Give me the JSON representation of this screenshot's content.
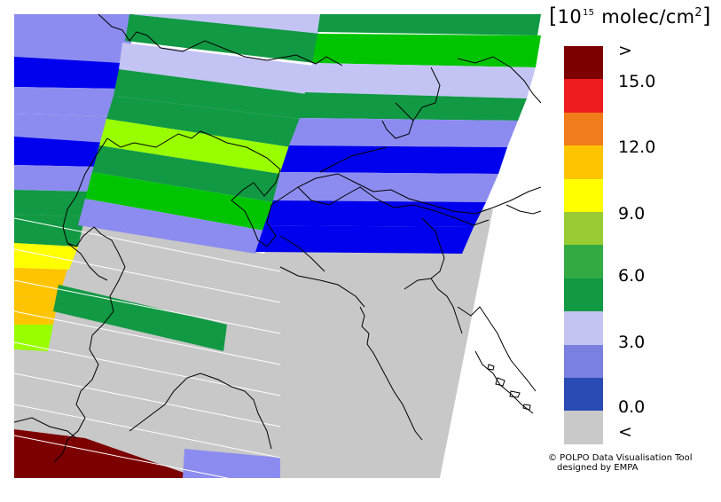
{
  "legend": {
    "unit_base": "10",
    "unit_exp": "15",
    "unit_rest": " molec/cm",
    "unit_sq": "2",
    "colors": [
      "#7d0000",
      "#ee1c1c",
      "#f07c1c",
      "#ffc400",
      "#ffff00",
      "#99cc33",
      "#33aa44",
      "#119944",
      "#c4c4f4",
      "#7a80e0",
      "#2a4ab4",
      "#c9c9c9"
    ],
    "labels": {
      "over": ">",
      "v15": "15.0",
      "v12": "12.0",
      "v9": "9.0",
      "v6": "6.0",
      "v3": "3.0",
      "v0": "0.0",
      "under": "<"
    }
  },
  "credit": {
    "line1": "© POLPO Data Visualisation Tool",
    "line2": "designed by EMPA"
  },
  "map_colors": {
    "no_data_gray": "#c8c8c8",
    "light_lavender": "#c4c4f4",
    "lavender": "#8c8cf0",
    "blue": "#0000ee",
    "green": "#119944",
    "bright_green": "#00c400",
    "yellow_green": "#99ff00",
    "yellow": "#ffff00",
    "orange": "#ffc400",
    "dark_red": "#7d0000"
  }
}
